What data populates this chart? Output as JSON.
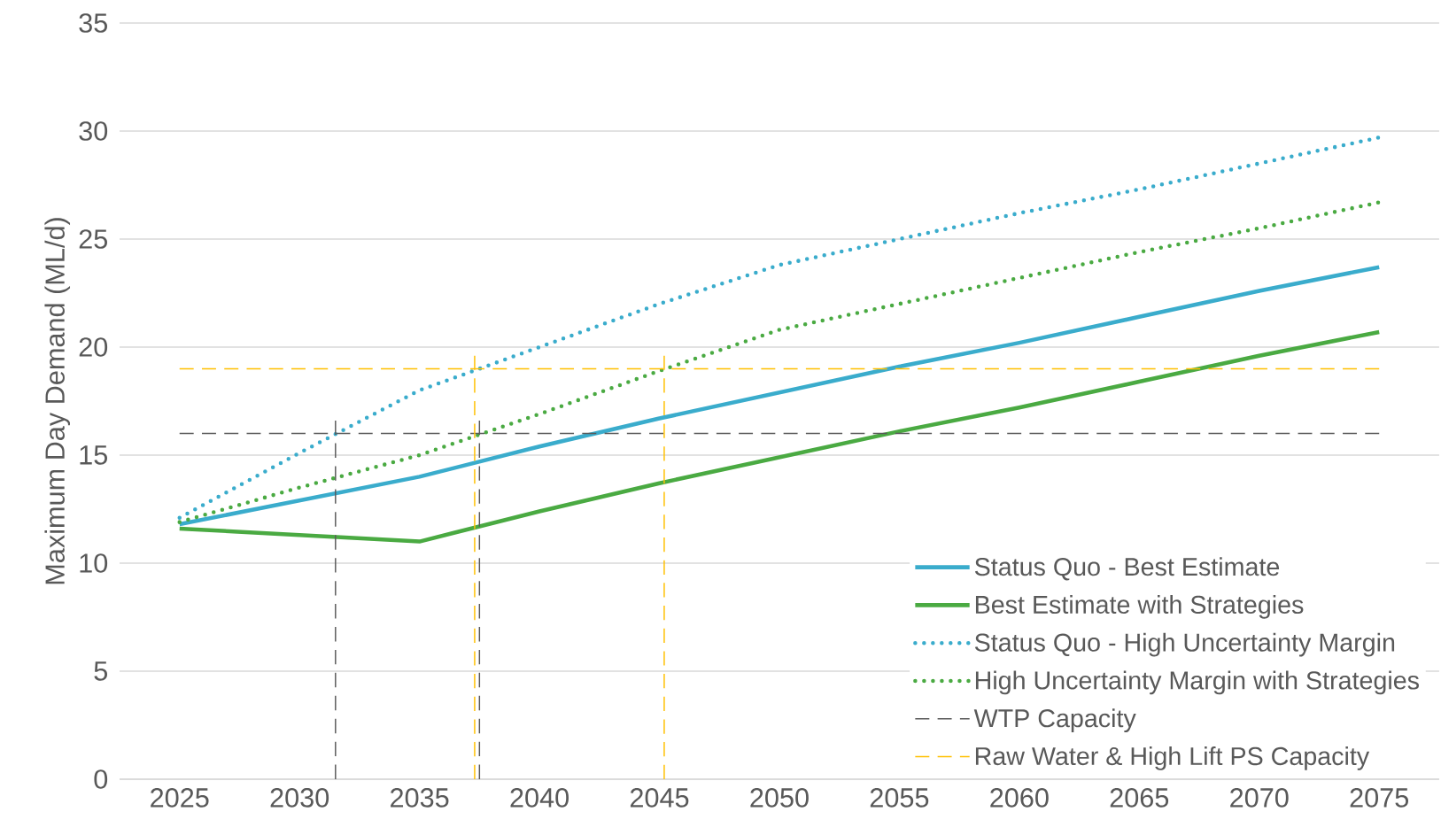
{
  "chart_data": {
    "type": "line",
    "ylabel": "Maximum Day Demand (ML/d)",
    "x": [
      2025,
      2030,
      2035,
      2040,
      2045,
      2050,
      2055,
      2060,
      2065,
      2070,
      2075
    ],
    "series": [
      {
        "name": "Status Quo - Best Estimate",
        "color": "#3aaccc",
        "line_style": "solid",
        "values": [
          11.8,
          12.9,
          14.0,
          15.4,
          16.7,
          17.9,
          19.1,
          20.2,
          21.4,
          22.6,
          23.7
        ]
      },
      {
        "name": "Best Estimate with Strategies",
        "color": "#4aaa42",
        "line_style": "solid",
        "values": [
          11.6,
          11.3,
          11.0,
          12.4,
          13.7,
          14.9,
          16.1,
          17.2,
          18.4,
          19.6,
          20.7
        ]
      },
      {
        "name": "Status Quo - High Uncertainty Margin",
        "color": "#3aaccc",
        "line_style": "dotted",
        "values": [
          12.1,
          15.1,
          18.0,
          20.0,
          22.0,
          23.8,
          25.0,
          26.2,
          27.3,
          28.5,
          29.7
        ]
      },
      {
        "name": "High Uncertainty Margin with Strategies",
        "color": "#4aaa42",
        "line_style": "dotted",
        "values": [
          11.9,
          13.5,
          15.0,
          16.9,
          18.9,
          20.8,
          22.0,
          23.2,
          24.4,
          25.5,
          26.7
        ]
      },
      {
        "name": "WTP Capacity",
        "color": "#595959",
        "line_style": "dashed",
        "x": [
          2025,
          2075
        ],
        "values": [
          16,
          16
        ]
      },
      {
        "name": "Raw Water & High Lift PS Capacity",
        "color": "#ffc000",
        "line_style": "dashed",
        "x": [
          2025,
          2075
        ],
        "values": [
          19,
          19
        ]
      },
      {
        "color": "#595959",
        "line_style": "dashed",
        "x": [
          2031.5,
          2031.5
        ],
        "values": [
          0,
          16.6
        ]
      },
      {
        "color": "#595959",
        "line_style": "dashed",
        "x": [
          2037.5,
          2037.5
        ],
        "values": [
          0,
          16.6
        ]
      },
      {
        "color": "#ffc000",
        "line_style": "dashed",
        "x": [
          2037.3,
          2037.3
        ],
        "values": [
          0,
          19.6
        ]
      },
      {
        "color": "#ffc000",
        "line_style": "dashed",
        "x": [
          2045.2,
          2045.2
        ],
        "values": [
          0,
          19.6
        ]
      }
    ],
    "xlim": [
      2022.5,
      2077.5
    ],
    "ylim": [
      0,
      35
    ],
    "xticks": [
      2025,
      2030,
      2035,
      2040,
      2045,
      2050,
      2055,
      2060,
      2065,
      2070,
      2075
    ],
    "yticks": [
      0,
      5,
      10,
      15,
      20,
      25,
      30,
      35
    ],
    "grid": "y",
    "legend": "bottom right",
    "marker": "none"
  }
}
